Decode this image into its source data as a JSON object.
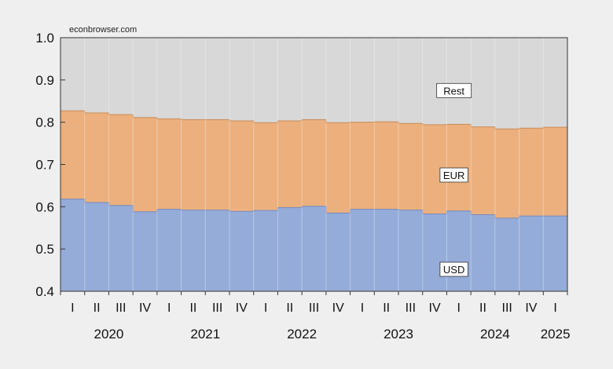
{
  "watermark": "econbrowser.com",
  "chart_data": {
    "type": "area",
    "stacked": true,
    "title": "",
    "xlabel": "",
    "ylabel": "",
    "ylim": [
      0.4,
      1.0
    ],
    "yticks": [
      0.4,
      0.5,
      0.6,
      0.7,
      0.8,
      0.9,
      1.0
    ],
    "ytick_labels": [
      "0.4",
      "0.5",
      "0.6",
      "0.7",
      "0.8",
      "0.9",
      "1.0"
    ],
    "categories": [
      "I",
      "II",
      "III",
      "IV",
      "I",
      "II",
      "III",
      "IV",
      "I",
      "II",
      "III",
      "IV",
      "I",
      "II",
      "III",
      "IV",
      "I",
      "II",
      "III",
      "IV",
      "I"
    ],
    "year_labels": [
      {
        "label": "2020",
        "center_index": 1.5
      },
      {
        "label": "2021",
        "center_index": 5.5
      },
      {
        "label": "2022",
        "center_index": 9.5
      },
      {
        "label": "2023",
        "center_index": 13.5
      },
      {
        "label": "2024",
        "center_index": 17.5
      },
      {
        "label": "2025",
        "center_index": 20.0
      }
    ],
    "series": [
      {
        "name": "USD",
        "color": "#95acd9",
        "values": [
          0.618,
          0.61,
          0.603,
          0.588,
          0.594,
          0.592,
          0.592,
          0.589,
          0.591,
          0.598,
          0.601,
          0.585,
          0.594,
          0.594,
          0.592,
          0.583,
          0.59,
          0.581,
          0.573,
          0.578,
          0.578
        ]
      },
      {
        "name": "EUR",
        "color": "#ebb07e",
        "cumulative": [
          0.827,
          0.822,
          0.818,
          0.811,
          0.808,
          0.806,
          0.806,
          0.803,
          0.799,
          0.803,
          0.806,
          0.799,
          0.8,
          0.801,
          0.797,
          0.794,
          0.795,
          0.789,
          0.784,
          0.786,
          0.788
        ]
      },
      {
        "name": "Rest",
        "color": "#d8d8d8",
        "cumulative_top": 1.0
      }
    ],
    "annotations": [
      {
        "text": "Rest",
        "x_index": 16.3,
        "y": 0.875
      },
      {
        "text": "EUR",
        "x_index": 16.3,
        "y": 0.675
      },
      {
        "text": "USD",
        "x_index": 16.3,
        "y": 0.452
      }
    ],
    "grid": false,
    "legend": "none (in-chart labels)"
  }
}
